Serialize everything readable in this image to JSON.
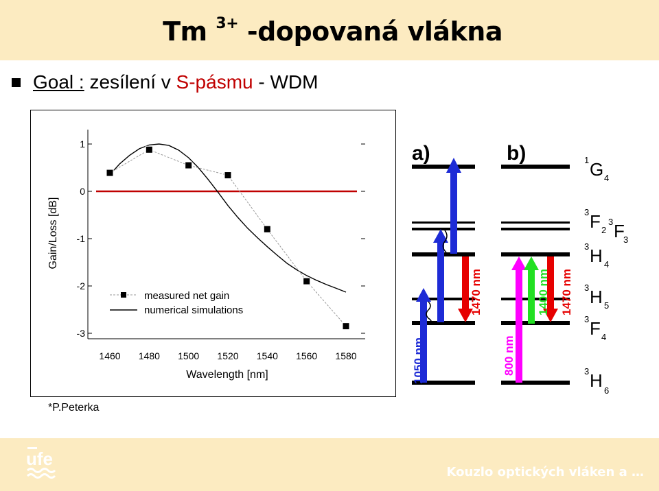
{
  "header": {
    "title_main": "Tm",
    "title_sup": "3+",
    "title_rest": " -dopovaná vlákna"
  },
  "bullet": {
    "goal": "Goal :",
    "text1": " zesílení v ",
    "red": "S-pásmu",
    "text2": " - WDM"
  },
  "chart_data": {
    "type": "scatter",
    "xlabel": "Wavelength [nm]",
    "ylabel": "Gain/Loss [dB]",
    "xlim": [
      1450,
      1590
    ],
    "ylim": [
      -3.2,
      1.1
    ],
    "xticks": [
      1460,
      1480,
      1500,
      1520,
      1540,
      1560,
      1580
    ],
    "yticks": [
      1,
      0,
      -1,
      -2,
      -3
    ],
    "legend": [
      "measured net gain",
      "numerical simulations"
    ],
    "measured": {
      "name": "measured net gain",
      "x": [
        1460,
        1480,
        1500,
        1520,
        1540,
        1560,
        1580
      ],
      "y": [
        0.39,
        0.88,
        0.55,
        0.34,
        -0.8,
        -1.9,
        -2.85
      ]
    },
    "simulation": {
      "name": "numerical simulations",
      "x": [
        1460,
        1465,
        1470,
        1475,
        1480,
        1485,
        1490,
        1495,
        1500,
        1505,
        1510,
        1515,
        1520,
        1525,
        1530,
        1535,
        1540,
        1545,
        1550,
        1555,
        1560,
        1565,
        1570,
        1575,
        1580
      ],
      "y": [
        0.35,
        0.58,
        0.76,
        0.9,
        0.98,
        1.0,
        0.97,
        0.87,
        0.71,
        0.5,
        0.25,
        -0.02,
        -0.3,
        -0.55,
        -0.78,
        -0.98,
        -1.17,
        -1.35,
        -1.52,
        -1.66,
        -1.78,
        -1.88,
        -1.97,
        -2.05,
        -2.13
      ]
    },
    "zero_line_color": "#c00000"
  },
  "energy_diagram": {
    "panel_a": "a)",
    "panel_b": "b)",
    "levels": [
      {
        "sup": "1",
        "main": "G",
        "sub": "4"
      },
      {
        "sup": "3",
        "main": "F",
        "sub": "2"
      },
      {
        "sup": "3",
        "main": "F",
        "sub": "3"
      },
      {
        "sup": "3",
        "main": "H",
        "sub": "4"
      },
      {
        "sup": "3",
        "main": "H",
        "sub": "5"
      },
      {
        "sup": "3",
        "main": "F",
        "sub": "4"
      },
      {
        "sup": "3",
        "main": "H",
        "sub": "6"
      }
    ],
    "labels": {
      "a_pump": "1050 nm",
      "a_signal": "1470 nm",
      "b_pump": "800 nm",
      "b_green": "1400 nm",
      "b_signal": "1470 nm"
    },
    "colors": {
      "blue": "#1d2bd6",
      "red": "#e60000",
      "magenta": "#ff00ff",
      "green": "#22e022"
    }
  },
  "author": "*P.Peterka",
  "footer": {
    "logo": "ufe",
    "text": "Kouzlo optických vláken a …"
  }
}
